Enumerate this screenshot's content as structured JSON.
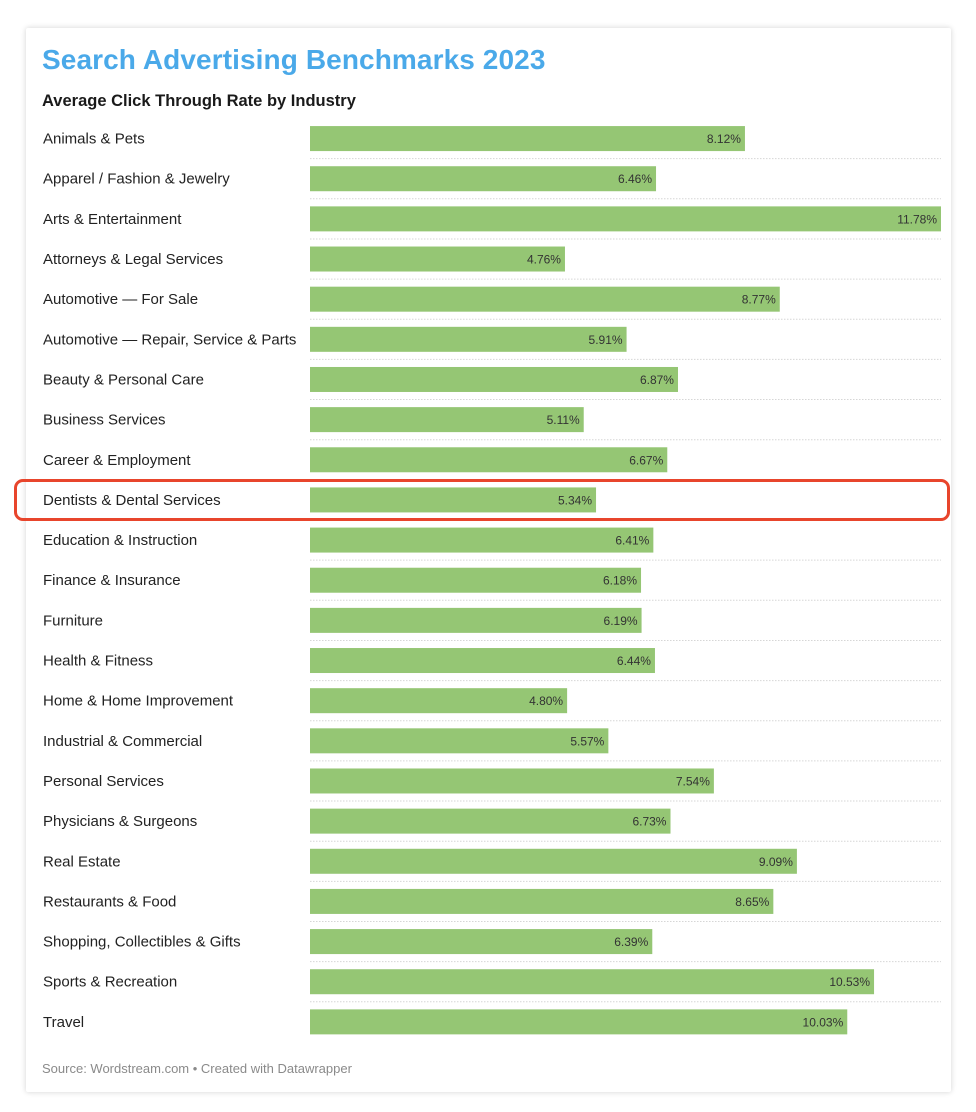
{
  "chart_data": {
    "type": "bar",
    "orientation": "horizontal",
    "title": "Search Advertising Benchmarks 2023",
    "subtitle": "Average Click Through Rate by Industry",
    "categories": [
      "Animals & Pets",
      "Apparel / Fashion & Jewelry",
      "Arts & Entertainment",
      "Attorneys & Legal Services",
      "Automotive — For Sale",
      "Automotive — Repair, Service & Parts",
      "Beauty & Personal Care",
      "Business Services",
      "Career & Employment",
      "Dentists & Dental Services",
      "Education & Instruction",
      "Finance & Insurance",
      "Furniture",
      "Health & Fitness",
      "Home & Home Improvement",
      "Industrial & Commercial",
      "Personal Services",
      "Physicians & Surgeons",
      "Real Estate",
      "Restaurants & Food",
      "Shopping, Collectibles & Gifts",
      "Sports & Recreation",
      "Travel"
    ],
    "values": [
      8.12,
      6.46,
      11.78,
      4.76,
      8.77,
      5.91,
      6.87,
      5.11,
      6.67,
      5.34,
      6.41,
      6.18,
      6.19,
      6.44,
      4.8,
      5.57,
      7.54,
      6.73,
      9.09,
      8.65,
      6.39,
      10.53,
      10.03
    ],
    "value_labels": [
      "8.12%",
      "6.46%",
      "11.78%",
      "4.76%",
      "8.77%",
      "5.91%",
      "6.87%",
      "5.11%",
      "6.67%",
      "5.34%",
      "6.41%",
      "6.18%",
      "6.19%",
      "6.44%",
      "4.80%",
      "5.57%",
      "7.54%",
      "6.73%",
      "9.09%",
      "8.65%",
      "6.39%",
      "10.53%",
      "10.03%"
    ],
    "unit": "%",
    "xlim": [
      0,
      11.78
    ],
    "grid": false,
    "bar_color": "#95c674",
    "highlighted_category": "Dentists & Dental Services",
    "highlight_color": "#e8452c"
  },
  "footer": {
    "source": "Source: Wordstream.com • Created with Datawrapper"
  }
}
